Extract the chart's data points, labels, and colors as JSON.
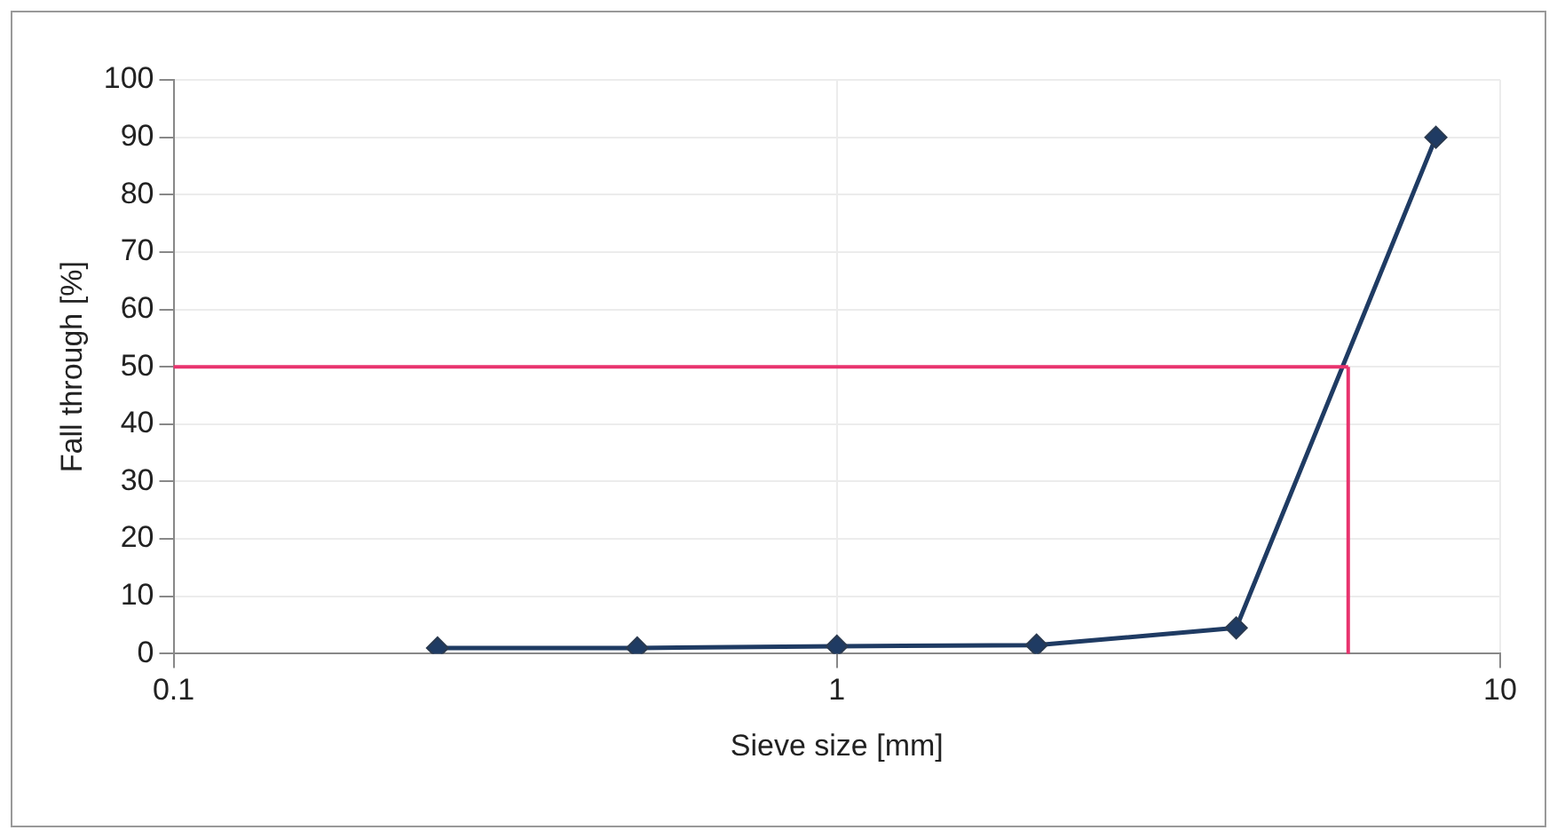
{
  "chart_data": {
    "type": "line",
    "xlabel": "Sieve size [mm]",
    "ylabel": "Fall through [%]",
    "x": [
      0.25,
      0.5,
      1,
      2,
      4,
      8
    ],
    "series": [
      {
        "color": "#1f3b63",
        "values": [
          1,
          1,
          1.3,
          1.5,
          4.5,
          90
        ]
      }
    ],
    "log": "x",
    "xlim": [
      0.1,
      10
    ],
    "xticks": [
      0.1,
      1,
      10
    ],
    "ylim": [
      0,
      100
    ],
    "yticks": [
      0,
      10,
      20,
      30,
      40,
      50,
      60,
      70,
      80,
      90,
      100
    ],
    "grid": true,
    "legend": false,
    "marker": "diamond",
    "line_style": "solid",
    "ref_lines": [
      {
        "axis": "y",
        "value": 50,
        "color": "#e8336e"
      },
      {
        "axis": "x",
        "value": 5.9,
        "color": "#e8336e"
      }
    ]
  }
}
